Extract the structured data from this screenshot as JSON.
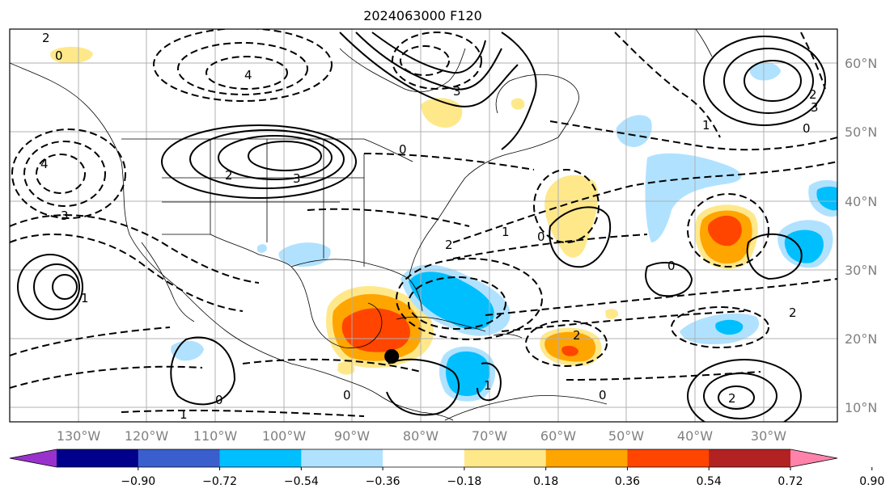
{
  "title": "2024063000 F120",
  "longitude_labels": [
    "130°W",
    "120°W",
    "110°W",
    "100°W",
    "90°W",
    "80°W",
    "70°W",
    "60°W",
    "50°W",
    "40°W",
    "30°W"
  ],
  "latitude_labels": [
    "60°N",
    "50°N",
    "40°N",
    "30°N",
    "20°N",
    "10°N"
  ],
  "map_extent": {
    "lon_min": -135.5,
    "lon_max": -25,
    "lat_min": 8,
    "lat_max": 65
  },
  "colorbar": {
    "ticks": [
      "−0.90",
      "−0.72",
      "−0.54",
      "−0.36",
      "−0.18",
      "0.18",
      "0.36",
      "0.54",
      "0.72",
      "0.90"
    ],
    "colors": [
      "#9932cc",
      "#00008b",
      "#3a5fcd",
      "#00bfff",
      "#b0e2ff",
      "#ffffff",
      "#ffe88a",
      "#ffa500",
      "#ff4500",
      "#b22222",
      "#ff82ab"
    ],
    "extend": "both"
  },
  "contour_labels": {
    "label_a": "2",
    "label_b": "0",
    "label_c": "4",
    "label_d": "3",
    "label_e": "1",
    "label_f": "2",
    "label_g": "3",
    "label_h": "4",
    "label_i": "3",
    "label_j": "0",
    "label_k": "1",
    "label_l": "2",
    "label_m": "0",
    "label_n": "2",
    "label_o": "1",
    "label_p": "0",
    "label_q": "2",
    "label_r": "0",
    "label_s": "1",
    "label_t": "2",
    "label_u": "0",
    "label_v": "1",
    "label_w": "3",
    "label_x": "0",
    "label_y": "2",
    "label_z": "0"
  },
  "marker": {
    "lon": -84.5,
    "lat": 17.5,
    "color": "#000000"
  },
  "colors": {
    "frame": "#000000",
    "grid": "#b0b0b0",
    "coast": "#000000"
  }
}
